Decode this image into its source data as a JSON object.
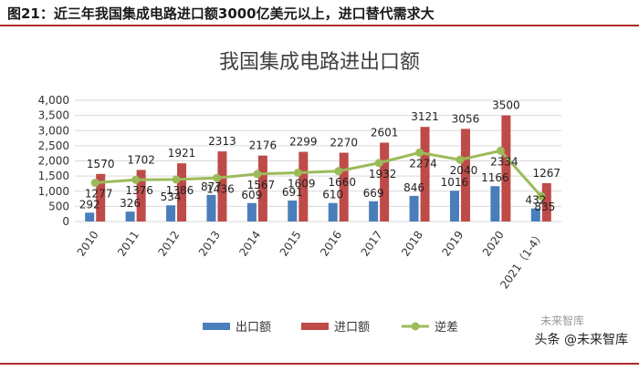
{
  "caption": "图21：近三年我国集成电路进口额3000亿美元以上，进口替代需求大",
  "watermark_main": "头条 @未来智库",
  "watermark_faint": "未来智库",
  "chart_data": {
    "type": "bar",
    "title": "我国集成电路进出口额",
    "categories": [
      "2010",
      "2011",
      "2012",
      "2013",
      "2014",
      "2015",
      "2016",
      "2017",
      "2018",
      "2019",
      "2020",
      "2021（1-4）"
    ],
    "ylim": [
      0,
      4000
    ],
    "yticks": [
      "0",
      "500",
      "1,000",
      "1,500",
      "2,000",
      "2,500",
      "3,000",
      "3,500",
      "4,000"
    ],
    "series": [
      {
        "name": "出口额",
        "kind": "bar",
        "color": "#4a7ebb",
        "values": [
          292,
          326,
          534,
          877,
          609,
          691,
          610,
          669,
          846,
          1016,
          1166,
          432
        ]
      },
      {
        "name": "进口额",
        "kind": "bar",
        "color": "#be4b48",
        "values": [
          1570,
          1702,
          1921,
          2313,
          2176,
          2299,
          2270,
          2601,
          3121,
          3056,
          3500,
          1267
        ]
      },
      {
        "name": "逆差",
        "kind": "line",
        "color": "#9bbb59",
        "values": [
          1277,
          1376,
          1386,
          1436,
          1567,
          1609,
          1660,
          1932,
          2274,
          2040,
          2334,
          835
        ]
      }
    ],
    "grid": true,
    "legend": "bottom"
  }
}
